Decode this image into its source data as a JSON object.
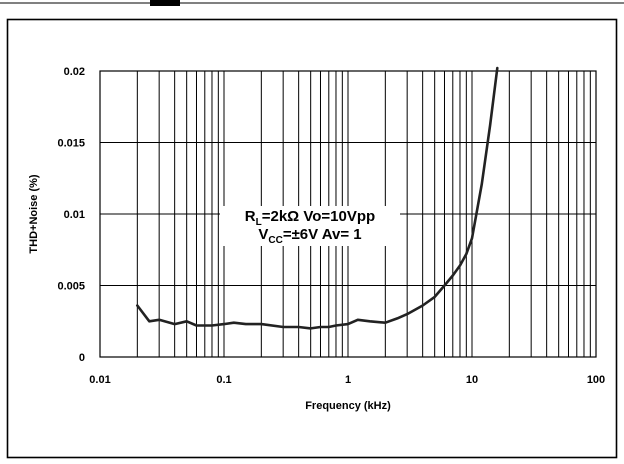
{
  "chart_data": {
    "type": "line",
    "xlabel": "Frequency (kHz)",
    "ylabel": "THD+Noise (%)",
    "xscale": "log",
    "xlim": [
      0.01,
      100
    ],
    "ylim": [
      0,
      0.02
    ],
    "x_ticks": [
      {
        "value": 0.01,
        "label": "0.01"
      },
      {
        "value": 0.1,
        "label": "0.1"
      },
      {
        "value": 1,
        "label": "1"
      },
      {
        "value": 10,
        "label": "10"
      },
      {
        "value": 100,
        "label": "100"
      }
    ],
    "y_ticks": [
      {
        "value": 0,
        "label": "0"
      },
      {
        "value": 0.005,
        "label": "0.005"
      },
      {
        "value": 0.01,
        "label": "0.01"
      },
      {
        "value": 0.015,
        "label": "0.015"
      },
      {
        "value": 0.02,
        "label": "0.02"
      }
    ],
    "grid": true,
    "annotation": {
      "line1": [
        {
          "text": "R",
          "sub": false
        },
        {
          "text": "L",
          "sub": true
        },
        {
          "text": "=2kΩ Vo=10Vpp",
          "sub": false
        }
      ],
      "line2": [
        {
          "text": "V",
          "sub": false
        },
        {
          "text": "CC",
          "sub": true
        },
        {
          "text": "=±6V Av= 1",
          "sub": false
        }
      ]
    },
    "series": [
      {
        "x": [
          0.02,
          0.025,
          0.03,
          0.04,
          0.05,
          0.06,
          0.07,
          0.08,
          0.1,
          0.12,
          0.15,
          0.2,
          0.3,
          0.4,
          0.5,
          0.6,
          0.7,
          0.8,
          1,
          1.2,
          1.5,
          2,
          2.5,
          3,
          4,
          5,
          6,
          7,
          8,
          9,
          10,
          12,
          14,
          16
        ],
        "y": [
          0.0036,
          0.0025,
          0.0026,
          0.0023,
          0.0025,
          0.0022,
          0.0022,
          0.0022,
          0.0023,
          0.0024,
          0.0023,
          0.0023,
          0.0021,
          0.0021,
          0.002,
          0.0021,
          0.0021,
          0.0022,
          0.0023,
          0.0026,
          0.0025,
          0.0024,
          0.0027,
          0.003,
          0.0036,
          0.0042,
          0.005,
          0.0057,
          0.0064,
          0.0072,
          0.0083,
          0.0121,
          0.0162,
          0.0202
        ]
      }
    ]
  }
}
